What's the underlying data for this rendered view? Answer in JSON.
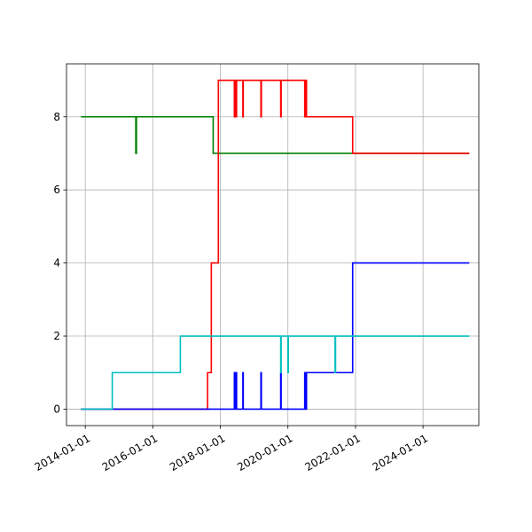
{
  "chart_data": {
    "type": "line",
    "title": "",
    "xlabel": "",
    "ylabel": "",
    "x_axis_type": "date",
    "xlim": [
      "2013-06-12",
      "2025-08-26"
    ],
    "ylim": [
      -0.45,
      9.45
    ],
    "grid": true,
    "xticks": [
      "2014-01-01",
      "2016-01-01",
      "2018-01-01",
      "2020-01-01",
      "2022-01-01",
      "2024-01-01"
    ],
    "xtick_labels": [
      "2014-01-01",
      "2016-01-01",
      "2018-01-01",
      "2020-01-01",
      "2022-01-01",
      "2024-01-01"
    ],
    "yticks": [
      0,
      2,
      4,
      6,
      8
    ],
    "ytick_labels": [
      "0",
      "2",
      "4",
      "6",
      "8"
    ],
    "series": [
      {
        "color": "#008000",
        "step": "post",
        "points": [
          [
            "2013-11-15",
            8
          ],
          [
            "2015-07-01",
            7
          ],
          [
            "2015-07-08",
            8
          ],
          [
            "2017-10-15",
            7
          ],
          [
            "2021-12-20",
            7
          ],
          [
            "2025-05-15",
            7
          ]
        ]
      },
      {
        "color": "#ff0000",
        "step": "post",
        "points": [
          [
            "2013-11-15",
            0
          ],
          [
            "2017-08-15",
            1
          ],
          [
            "2017-09-25",
            4
          ],
          [
            "2017-12-10",
            9
          ],
          [
            "2018-06-01",
            8
          ],
          [
            "2018-06-05",
            9
          ],
          [
            "2018-06-10",
            8
          ],
          [
            "2018-06-15",
            9
          ],
          [
            "2018-06-20",
            8
          ],
          [
            "2018-06-25",
            9
          ],
          [
            "2018-09-01",
            8
          ],
          [
            "2018-09-05",
            9
          ],
          [
            "2019-03-15",
            8
          ],
          [
            "2019-03-20",
            9
          ],
          [
            "2019-10-15",
            8
          ],
          [
            "2019-10-20",
            9
          ],
          [
            "2020-07-01",
            8
          ],
          [
            "2020-07-05",
            9
          ],
          [
            "2020-07-10",
            8
          ],
          [
            "2020-07-15",
            9
          ],
          [
            "2020-07-20",
            8
          ],
          [
            "2021-12-01",
            7
          ],
          [
            "2025-05-15",
            7
          ]
        ]
      },
      {
        "color": "#0000ff",
        "step": "post",
        "points": [
          [
            "2013-11-15",
            0
          ],
          [
            "2018-06-01",
            1
          ],
          [
            "2018-06-05",
            0
          ],
          [
            "2018-06-10",
            1
          ],
          [
            "2018-06-15",
            0
          ],
          [
            "2018-06-20",
            1
          ],
          [
            "2018-06-25",
            0
          ],
          [
            "2018-09-01",
            1
          ],
          [
            "2018-09-05",
            0
          ],
          [
            "2019-03-15",
            1
          ],
          [
            "2019-03-20",
            0
          ],
          [
            "2019-10-15",
            1
          ],
          [
            "2019-10-20",
            0
          ],
          [
            "2020-07-01",
            1
          ],
          [
            "2020-07-05",
            0
          ],
          [
            "2020-07-10",
            1
          ],
          [
            "2020-07-15",
            0
          ],
          [
            "2020-07-20",
            1
          ],
          [
            "2021-12-01",
            4
          ],
          [
            "2025-05-15",
            4
          ]
        ]
      },
      {
        "color": "#00bfbf",
        "step": "post",
        "points": [
          [
            "2013-11-15",
            0
          ],
          [
            "2014-10-20",
            1
          ],
          [
            "2016-10-25",
            2
          ],
          [
            "2019-10-15",
            1
          ],
          [
            "2019-10-20",
            2
          ],
          [
            "2020-01-01",
            1
          ],
          [
            "2020-01-06",
            2
          ],
          [
            "2021-05-25",
            1
          ],
          [
            "2021-05-30",
            2
          ],
          [
            "2025-05-15",
            2
          ]
        ]
      }
    ]
  }
}
